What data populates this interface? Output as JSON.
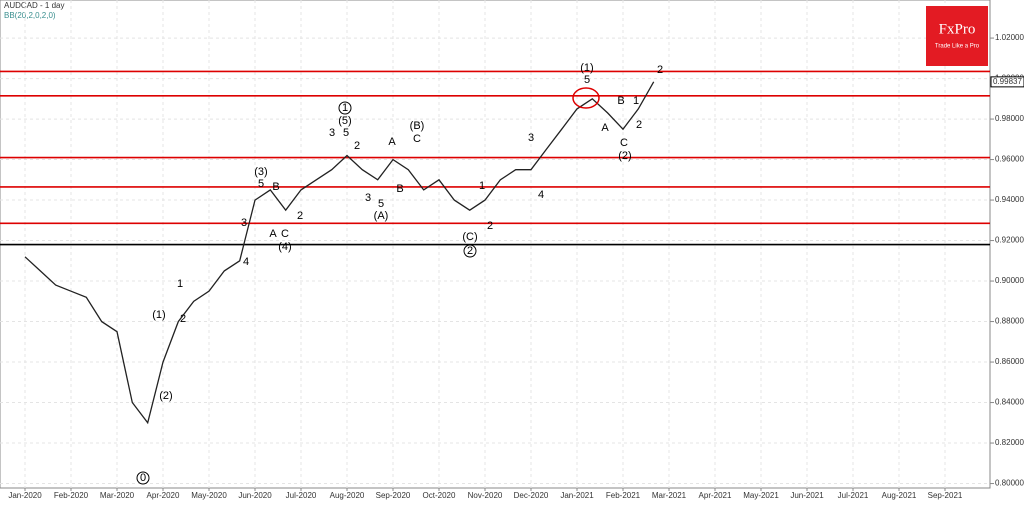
{
  "chart_data": {
    "type": "line",
    "title": "AUDCAD - 1 day",
    "subtitle": "BB(20,2,0,2,0)",
    "brand": "FxPro",
    "brand_tagline": "Trade Like a Pro",
    "categories": [
      "Jan-2020",
      null,
      null,
      "Feb-2020",
      null,
      null,
      "Mar-2020",
      null,
      null,
      "Apr-2020",
      null,
      null,
      "May-2020",
      null,
      null,
      "Jun-2020",
      null,
      null,
      "Jul-2020",
      null,
      null,
      "Aug-2020",
      null,
      null,
      "Sep-2020",
      null,
      null,
      "Oct-2020",
      null,
      null,
      "Nov-2020",
      null,
      null,
      "Dec-2020",
      null,
      null,
      "Jan-2021",
      null,
      null,
      "Feb-2021",
      null,
      null,
      "Mar-2021",
      null,
      null,
      "Apr-2021",
      null,
      null,
      "May-2021",
      null,
      null,
      "Jun-2021",
      null,
      null,
      "Jul-2021",
      null,
      null,
      "Aug-2021",
      null,
      null,
      "Sep-2021"
    ],
    "values": [
      0.912,
      0.905,
      0.898,
      0.895,
      0.892,
      0.88,
      0.875,
      0.84,
      0.83,
      0.86,
      0.88,
      0.89,
      0.895,
      0.905,
      0.91,
      0.94,
      0.945,
      0.935,
      0.945,
      0.95,
      0.955,
      0.962,
      0.955,
      0.95,
      0.96,
      0.955,
      0.945,
      0.95,
      0.94,
      0.935,
      0.94,
      0.95,
      0.955,
      0.955,
      0.965,
      0.975,
      0.985,
      0.99,
      0.983,
      0.975,
      0.985,
      0.9984,
      null,
      null,
      null,
      null,
      null,
      null,
      null,
      null,
      null,
      null,
      null,
      null,
      null,
      null,
      null,
      null,
      null,
      null,
      null
    ],
    "color": "#222222",
    "ylim": [
      0.7978,
      1.0388
    ],
    "yticks": [
      {
        "value": 0.8,
        "label": "0.80000"
      },
      {
        "value": 0.82,
        "label": "0.82000"
      },
      {
        "value": 0.84,
        "label": "0.84000"
      },
      {
        "value": 0.86,
        "label": "0.86000"
      },
      {
        "value": 0.88,
        "label": "0.88000"
      },
      {
        "value": 0.9,
        "label": "0.90000"
      },
      {
        "value": 0.92,
        "label": "0.92000"
      },
      {
        "value": 0.94,
        "label": "0.94000"
      },
      {
        "value": 0.96,
        "label": "0.96000"
      },
      {
        "value": 0.98,
        "label": "0.98000"
      },
      {
        "value": 1.0,
        "label": "1.00000"
      },
      {
        "value": 1.02,
        "label": "1.02000"
      }
    ],
    "grid": true,
    "levels": [
      {
        "value": 1.0035,
        "color": "#dd0000"
      },
      {
        "value": 0.9915,
        "color": "#dd0000"
      },
      {
        "value": 0.961,
        "color": "#dd0000"
      },
      {
        "value": 0.9465,
        "color": "#dd0000"
      },
      {
        "value": 0.9285,
        "color": "#dd0000"
      },
      {
        "value": 0.918,
        "color": "#000000"
      }
    ],
    "last_price": {
      "value": 0.99837,
      "label": "0.99837"
    },
    "annotations": [
      "(1)",
      "5",
      "2",
      "B",
      "A",
      "1",
      "2",
      "C",
      "(2)",
      "(C)",
      "2",
      "(B)",
      "C",
      "A",
      "B",
      "(A)",
      "5",
      "3",
      "(5)",
      "5",
      "3",
      "2",
      "1",
      "(3)",
      "5",
      "B",
      "A",
      "C",
      "(4)",
      "3",
      "(1)",
      "(2)",
      "0",
      "4",
      "3",
      "4",
      "2",
      "2",
      "1",
      "2",
      "1"
    ]
  }
}
